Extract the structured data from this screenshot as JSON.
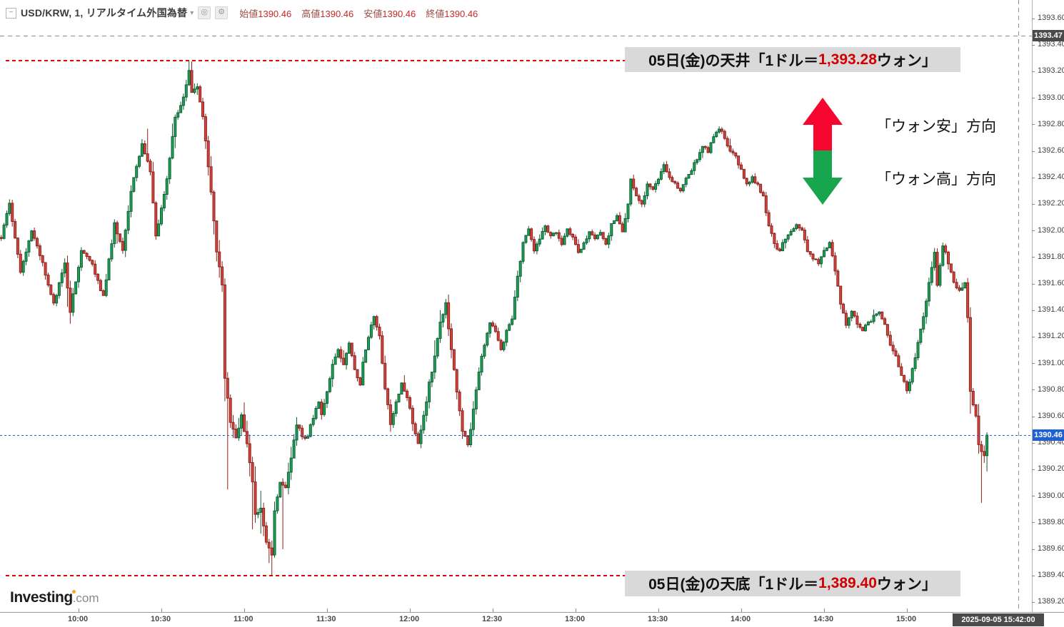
{
  "header": {
    "symbol_title": "USD/KRW, 1, リアルタイム外国為替",
    "caret": "▾",
    "collapse_glyph": "−",
    "icons": {
      "quick_chart": "◎",
      "settings": "⚙"
    },
    "ohlc": [
      {
        "label": "始値",
        "value": "1390.46"
      },
      {
        "label": "高値",
        "value": "1390.46"
      },
      {
        "label": "安値",
        "value": "1390.46"
      },
      {
        "label": "終値",
        "value": "1390.46"
      }
    ]
  },
  "logo": {
    "brand": "Investing",
    "suffix": ".com"
  },
  "annotations": {
    "ceiling": {
      "prefix": "05日(金)の天井「1ドル＝",
      "value": "1,393.28",
      "suffix": "ウォン」",
      "price": 1393.28
    },
    "floor": {
      "prefix": "05日(金)の天底「1ドル＝",
      "value": "1,389.40",
      "suffix": "ウォン」",
      "price": 1389.4
    },
    "arrow_up_label": "「ウォン安」方向",
    "arrow_down_label": "「ウォン高」方向"
  },
  "axis_badges": {
    "crosshair_price": "1393.47",
    "crosshair_price_value": 1393.47,
    "last_price": "1390.46",
    "crosshair_time": "2025-09-05 15:42:00"
  },
  "colors": {
    "up_candle": "#1fa158",
    "up_border": "#0e5f34",
    "down_candle": "#d6453d",
    "down_border": "#8a221d",
    "last_price_blue": "#2160cf",
    "annotation_red": "#e60000",
    "badge_dark": "#4a4a4a",
    "note_box_gray": "#d9d9d9",
    "arrow_red": "#f5062e",
    "arrow_green": "#17a64d"
  },
  "chart_data": {
    "type": "candlestick",
    "title": "USD/KRW 1-minute realtime",
    "interval_minutes": 1,
    "session": {
      "first_bar": "09:32",
      "last_bar": "15:29"
    },
    "last_price": 1390.46,
    "ylim": [
      1389.12,
      1393.73
    ],
    "grid": false,
    "y_ticks": [
      "1393.60",
      "1393.40",
      "1393.20",
      "1393.00",
      "1392.80",
      "1392.60",
      "1392.40",
      "1392.20",
      "1392.00",
      "1391.80",
      "1391.60",
      "1391.40",
      "1391.20",
      "1391.00",
      "1390.80",
      "1390.60",
      "1390.40",
      "1390.20",
      "1390.00",
      "1389.80",
      "1389.60",
      "1389.40",
      "1389.20"
    ],
    "x_ticks": [
      "10:00",
      "10:30",
      "11:00",
      "11:30",
      "12:00",
      "12:30",
      "13:00",
      "13:30",
      "14:00",
      "14:30",
      "15:00"
    ],
    "price_path": [
      [
        572,
        1391.95
      ],
      [
        575,
        1392.2
      ],
      [
        579,
        1391.7
      ],
      [
        583,
        1392.0
      ],
      [
        587,
        1391.75
      ],
      [
        591,
        1391.45
      ],
      [
        595,
        1391.75
      ],
      [
        597,
        1391.4
      ],
      [
        601,
        1391.85
      ],
      [
        605,
        1391.75
      ],
      [
        609,
        1391.5
      ],
      [
        613,
        1392.05
      ],
      [
        616,
        1391.85
      ],
      [
        619,
        1392.3
      ],
      [
        623,
        1392.65
      ],
      [
        626,
        1392.45
      ],
      [
        628,
        1391.95
      ],
      [
        632,
        1392.4
      ],
      [
        635,
        1392.85
      ],
      [
        638,
        1393.0
      ],
      [
        640,
        1393.22
      ],
      [
        641,
        1393.05
      ],
      [
        643,
        1393.1
      ],
      [
        645,
        1392.85
      ],
      [
        648,
        1392.3
      ],
      [
        650,
        1391.85
      ],
      [
        652,
        1391.6
      ],
      [
        653,
        1390.9
      ],
      [
        655,
        1390.55
      ],
      [
        657,
        1390.45
      ],
      [
        659,
        1390.6
      ],
      [
        661,
        1390.4
      ],
      [
        663,
        1390.1
      ],
      [
        664,
        1389.85
      ],
      [
        666,
        1389.9
      ],
      [
        668,
        1389.65
      ],
      [
        670,
        1389.55
      ],
      [
        671,
        1389.9
      ],
      [
        673,
        1390.1
      ],
      [
        675,
        1390.05
      ],
      [
        677,
        1390.3
      ],
      [
        679,
        1390.55
      ],
      [
        681,
        1390.45
      ],
      [
        683,
        1390.45
      ],
      [
        685,
        1390.6
      ],
      [
        687,
        1390.7
      ],
      [
        688,
        1390.6
      ],
      [
        690,
        1390.8
      ],
      [
        692,
        1391.0
      ],
      [
        694,
        1391.1
      ],
      [
        696,
        1391.0
      ],
      [
        698,
        1391.15
      ],
      [
        700,
        1390.95
      ],
      [
        702,
        1390.85
      ],
      [
        703,
        1391.0
      ],
      [
        705,
        1391.2
      ],
      [
        707,
        1391.35
      ],
      [
        709,
        1391.2
      ],
      [
        711,
        1390.8
      ],
      [
        713,
        1390.55
      ],
      [
        715,
        1390.7
      ],
      [
        717,
        1390.85
      ],
      [
        719,
        1390.75
      ],
      [
        721,
        1390.55
      ],
      [
        723,
        1390.4
      ],
      [
        725,
        1390.6
      ],
      [
        727,
        1390.85
      ],
      [
        729,
        1391.05
      ],
      [
        731,
        1391.3
      ],
      [
        733,
        1391.45
      ],
      [
        735,
        1391.1
      ],
      [
        737,
        1390.8
      ],
      [
        739,
        1390.5
      ],
      [
        741,
        1390.38
      ],
      [
        743,
        1390.65
      ],
      [
        745,
        1390.95
      ],
      [
        747,
        1391.15
      ],
      [
        749,
        1391.3
      ],
      [
        751,
        1391.25
      ],
      [
        753,
        1391.1
      ],
      [
        755,
        1391.25
      ],
      [
        757,
        1391.35
      ],
      [
        759,
        1391.65
      ],
      [
        761,
        1391.9
      ],
      [
        763,
        1392.0
      ],
      [
        765,
        1391.85
      ],
      [
        767,
        1391.95
      ],
      [
        769,
        1392.05
      ],
      [
        771,
        1391.95
      ],
      [
        773,
        1392.0
      ],
      [
        775,
        1391.9
      ],
      [
        777,
        1392.0
      ],
      [
        779,
        1391.95
      ],
      [
        781,
        1391.85
      ],
      [
        783,
        1391.9
      ],
      [
        785,
        1392.0
      ],
      [
        787,
        1391.95
      ],
      [
        789,
        1392.0
      ],
      [
        791,
        1391.9
      ],
      [
        793,
        1392.05
      ],
      [
        795,
        1392.1
      ],
      [
        797,
        1392.0
      ],
      [
        799,
        1392.2
      ],
      [
        800,
        1392.4
      ],
      [
        802,
        1392.25
      ],
      [
        804,
        1392.2
      ],
      [
        806,
        1392.35
      ],
      [
        808,
        1392.3
      ],
      [
        810,
        1392.4
      ],
      [
        812,
        1392.5
      ],
      [
        814,
        1392.4
      ],
      [
        816,
        1392.35
      ],
      [
        818,
        1392.3
      ],
      [
        820,
        1392.4
      ],
      [
        822,
        1392.45
      ],
      [
        824,
        1392.55
      ],
      [
        826,
        1392.65
      ],
      [
        828,
        1392.6
      ],
      [
        830,
        1392.7
      ],
      [
        832,
        1392.78
      ],
      [
        834,
        1392.7
      ],
      [
        836,
        1392.6
      ],
      [
        838,
        1392.55
      ],
      [
        840,
        1392.45
      ],
      [
        842,
        1392.35
      ],
      [
        844,
        1392.4
      ],
      [
        846,
        1392.35
      ],
      [
        848,
        1392.25
      ],
      [
        850,
        1392.05
      ],
      [
        852,
        1391.9
      ],
      [
        854,
        1391.85
      ],
      [
        856,
        1391.95
      ],
      [
        858,
        1392.0
      ],
      [
        860,
        1392.05
      ],
      [
        862,
        1392.0
      ],
      [
        864,
        1391.85
      ],
      [
        866,
        1391.8
      ],
      [
        868,
        1391.75
      ],
      [
        870,
        1391.85
      ],
      [
        872,
        1391.9
      ],
      [
        874,
        1391.7
      ],
      [
        876,
        1391.45
      ],
      [
        878,
        1391.3
      ],
      [
        880,
        1391.4
      ],
      [
        882,
        1391.3
      ],
      [
        884,
        1391.25
      ],
      [
        886,
        1391.3
      ],
      [
        888,
        1391.35
      ],
      [
        890,
        1391.4
      ],
      [
        892,
        1391.3
      ],
      [
        894,
        1391.15
      ],
      [
        896,
        1391.05
      ],
      [
        898,
        1390.9
      ],
      [
        900,
        1390.8
      ],
      [
        902,
        1390.95
      ],
      [
        904,
        1391.15
      ],
      [
        906,
        1391.35
      ],
      [
        908,
        1391.6
      ],
      [
        910,
        1391.85
      ],
      [
        911,
        1391.6
      ],
      [
        913,
        1391.9
      ],
      [
        915,
        1391.75
      ],
      [
        917,
        1391.6
      ],
      [
        919,
        1391.55
      ],
      [
        921,
        1391.6
      ],
      [
        922,
        1391.35
      ],
      [
        923,
        1390.8
      ],
      [
        925,
        1390.6
      ],
      [
        926,
        1390.4
      ],
      [
        928,
        1390.3
      ],
      [
        929,
        1390.46
      ]
    ],
    "wick_extremes": [
      {
        "t": 597,
        "type": "low",
        "price": 1391.3
      },
      {
        "t": 625,
        "type": "high",
        "price": 1392.77
      },
      {
        "t": 640,
        "type": "high",
        "price": 1393.28
      },
      {
        "t": 654,
        "type": "low",
        "price": 1390.05
      },
      {
        "t": 663,
        "type": "low",
        "price": 1389.75
      },
      {
        "t": 670,
        "type": "low",
        "price": 1389.4
      },
      {
        "t": 674,
        "type": "low",
        "price": 1389.6
      },
      {
        "t": 734,
        "type": "high",
        "price": 1391.52
      },
      {
        "t": 927,
        "type": "low",
        "price": 1389.95
      }
    ],
    "key_levels": {
      "ceiling": 1393.28,
      "floor": 1389.4,
      "last": 1390.46
    }
  }
}
